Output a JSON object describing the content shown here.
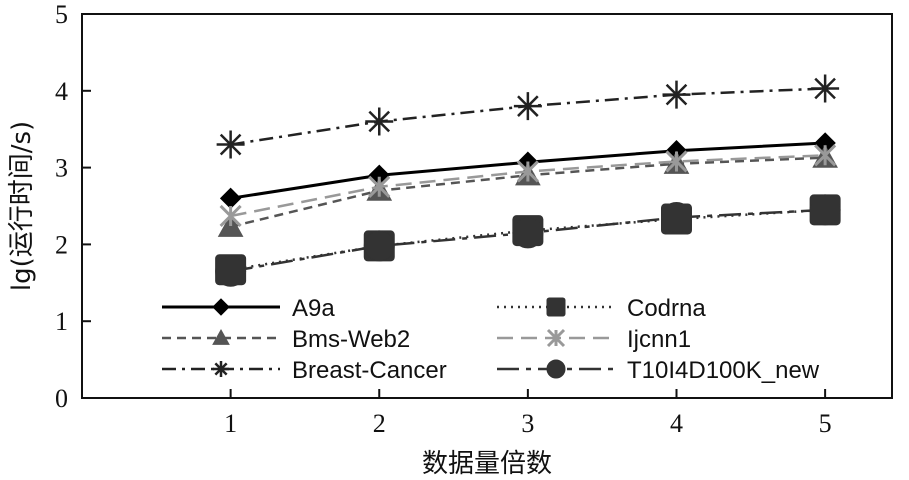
{
  "chart_data": {
    "type": "line",
    "xlabel": "数据量倍数",
    "ylabel": "lg(运行时间/s)",
    "x": [
      1,
      2,
      3,
      4,
      5
    ],
    "xlim": [
      0.0,
      5.45
    ],
    "ylim": [
      0,
      5
    ],
    "x_ticks": [
      "1",
      "2",
      "3",
      "4",
      "5"
    ],
    "y_ticks": [
      "0",
      "1",
      "2",
      "3",
      "4",
      "5"
    ],
    "grid": false,
    "legend_position": "bottom-center",
    "series": [
      {
        "name": "A9a",
        "values": [
          2.6,
          2.9,
          3.07,
          3.22,
          3.32
        ],
        "color": "#000000",
        "dash": "solid",
        "marker": "diamond",
        "legend_col": 0,
        "legend_row": 0
      },
      {
        "name": "Codrna",
        "values": [
          1.67,
          1.98,
          2.18,
          2.33,
          2.45
        ],
        "color": "#333333",
        "dash": "dotted",
        "marker": "square",
        "legend_col": 1,
        "legend_row": 0
      },
      {
        "name": "Bms-Web2",
        "values": [
          2.23,
          2.7,
          2.9,
          3.05,
          3.13
        ],
        "color": "#555555",
        "dash": "dashed",
        "marker": "triangle",
        "legend_col": 0,
        "legend_row": 1
      },
      {
        "name": "Ijcnn1",
        "values": [
          2.37,
          2.75,
          2.95,
          3.08,
          3.16
        ],
        "color": "#999999",
        "dash": "longdash",
        "marker": "x",
        "legend_col": 1,
        "legend_row": 1
      },
      {
        "name": "Breast-Cancer",
        "values": [
          3.3,
          3.6,
          3.8,
          3.95,
          4.03
        ],
        "color": "#222222",
        "dash": "dashdot",
        "marker": "asterisk",
        "legend_col": 0,
        "legend_row": 2
      },
      {
        "name": "T10I4D100K_new",
        "values": [
          1.65,
          1.98,
          2.15,
          2.35,
          2.45
        ],
        "color": "#333333",
        "dash": "longdashdot",
        "marker": "circle",
        "legend_col": 1,
        "legend_row": 2
      }
    ]
  }
}
